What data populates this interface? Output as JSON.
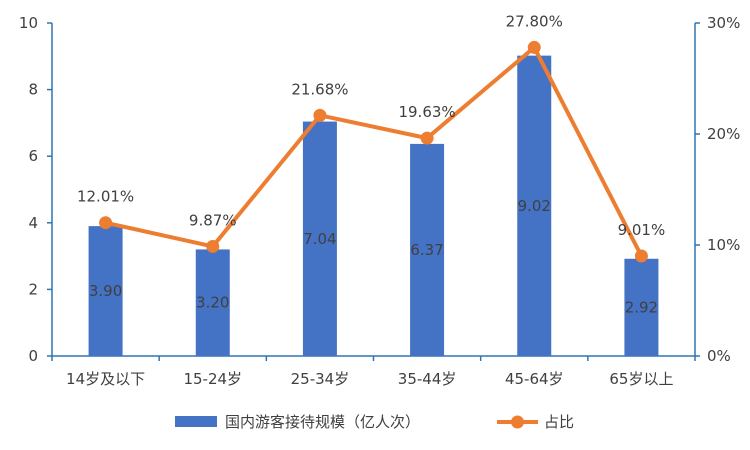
{
  "chart_data": {
    "type": "bar",
    "categories": [
      "14岁及以下",
      "15-24岁",
      "25-34岁",
      "35-44岁",
      "45-64岁",
      "65岁以上"
    ],
    "series": [
      {
        "name": "国内游客接待规模（亿人次）",
        "type": "bar",
        "axis": "left",
        "color": "#4472C4",
        "values": [
          3.9,
          3.2,
          7.04,
          6.37,
          9.02,
          2.92
        ],
        "labels": [
          "3.90",
          "3.20",
          "7.04",
          "6.37",
          "9.02",
          "2.92"
        ]
      },
      {
        "name": "占比",
        "type": "line",
        "axis": "right",
        "color": "#ED7D31",
        "values": [
          12.01,
          9.87,
          21.68,
          19.63,
          27.8,
          9.01
        ],
        "labels": [
          "12.01%",
          "9.87%",
          "21.68%",
          "19.63%",
          "27.80%",
          "9.01%"
        ]
      }
    ],
    "y_left": {
      "min": 0,
      "max": 10,
      "ticks": [
        "0",
        "2",
        "4",
        "6",
        "8",
        "10"
      ]
    },
    "y_right": {
      "min": 0,
      "max": 30,
      "ticks": [
        "0%",
        "10%",
        "20%",
        "30%"
      ]
    },
    "legend_position": "bottom",
    "grid": false
  }
}
